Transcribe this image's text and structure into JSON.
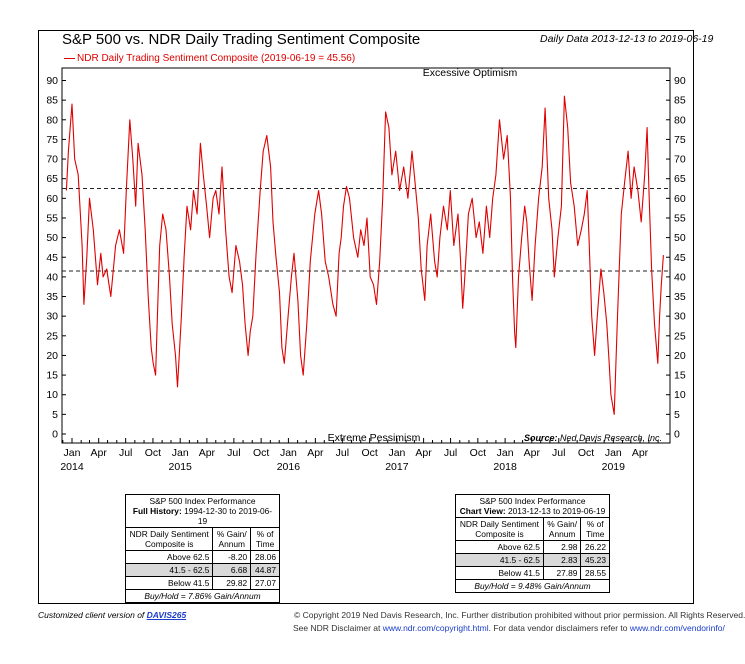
{
  "header": {
    "title": "S&P 500 vs. NDR Daily Trading Sentiment Composite",
    "date_range": "Daily Data 2013-12-13 to 2019-06-19"
  },
  "chart_data": {
    "type": "line",
    "title": "S&P 500 vs. NDR Daily Trading Sentiment Composite",
    "legend": "NDR Daily Trading Sentiment Composite (2019-06-19 = 45.56)",
    "legend_color": "#e00000",
    "legend_placement": "top-left",
    "ylim": [
      0,
      90
    ],
    "y_ticks": [
      0,
      5,
      10,
      15,
      20,
      25,
      30,
      35,
      40,
      45,
      50,
      55,
      60,
      65,
      70,
      75,
      80,
      85,
      90
    ],
    "x_range": [
      "2013-12-13",
      "2019-06-19"
    ],
    "x_month_labels": [
      "Jan",
      "Apr",
      "Jul",
      "Oct",
      "Jan",
      "Apr",
      "Jul",
      "Oct",
      "Jan",
      "Apr",
      "Jul",
      "Oct",
      "Jan",
      "Apr",
      "Jul",
      "Oct",
      "Jan",
      "Apr",
      "Jul",
      "Oct",
      "Jan",
      "Apr"
    ],
    "x_year_labels": [
      "2014",
      "2015",
      "2016",
      "2017",
      "2018",
      "2019"
    ],
    "reference_lines": [
      62.5,
      41.5
    ],
    "annotations": {
      "top": "Excessive Optimism",
      "bottom": "Extreme Pessimism"
    },
    "source": "Ned Davis Research, Inc.",
    "source_label": "Source:",
    "series": [
      {
        "x": [
          "2013-12-13",
          "2013-12-20",
          "2014-01-01",
          "2014-01-10",
          "2014-01-22",
          "2014-02-04",
          "2014-02-10",
          "2014-02-20",
          "2014-03-01",
          "2014-03-14",
          "2014-03-28",
          "2014-04-08",
          "2014-04-16",
          "2014-04-28",
          "2014-05-12",
          "2014-05-28",
          "2014-06-10",
          "2014-06-24",
          "2014-07-03",
          "2014-07-15",
          "2014-07-25",
          "2014-08-04",
          "2014-08-12",
          "2014-08-25",
          "2014-09-05",
          "2014-09-15",
          "2014-09-25",
          "2014-10-02",
          "2014-10-10",
          "2014-10-16",
          "2014-10-24",
          "2014-11-03",
          "2014-11-14",
          "2014-11-26",
          "2014-12-05",
          "2014-12-16",
          "2014-12-23",
          "2015-01-05",
          "2015-01-14",
          "2015-01-24",
          "2015-02-05",
          "2015-02-15",
          "2015-02-27",
          "2015-03-10",
          "2015-03-20",
          "2015-03-31",
          "2015-04-10",
          "2015-04-22",
          "2015-05-01",
          "2015-05-12",
          "2015-05-22",
          "2015-06-03",
          "2015-06-15",
          "2015-06-25",
          "2015-07-08",
          "2015-07-20",
          "2015-07-30",
          "2015-08-08",
          "2015-08-18",
          "2015-08-25",
          "2015-09-03",
          "2015-09-14",
          "2015-09-28",
          "2015-10-08",
          "2015-10-20",
          "2015-11-02",
          "2015-11-10",
          "2015-11-20",
          "2015-12-02",
          "2015-12-10",
          "2015-12-18",
          "2015-12-31",
          "2016-01-11",
          "2016-01-20",
          "2016-02-02",
          "2016-02-11",
          "2016-02-20",
          "2016-03-03",
          "2016-03-15",
          "2016-03-30",
          "2016-04-12",
          "2016-04-22",
          "2016-05-04",
          "2016-05-16",
          "2016-05-30",
          "2016-06-10",
          "2016-06-20",
          "2016-06-27",
          "2016-07-05",
          "2016-07-15",
          "2016-07-25",
          "2016-08-08",
          "2016-08-22",
          "2016-09-01",
          "2016-09-12",
          "2016-09-22",
          "2016-10-03",
          "2016-10-14",
          "2016-10-24",
          "2016-11-04",
          "2016-11-14",
          "2016-11-24",
          "2016-12-05",
          "2016-12-15",
          "2016-12-28",
          "2017-01-10",
          "2017-01-24",
          "2017-02-07",
          "2017-02-21",
          "2017-03-02",
          "2017-03-14",
          "2017-03-24",
          "2017-04-05",
          "2017-04-13",
          "2017-04-25",
          "2017-05-08",
          "2017-05-17",
          "2017-05-26",
          "2017-06-07",
          "2017-06-20",
          "2017-06-30",
          "2017-07-12",
          "2017-07-26",
          "2017-08-04",
          "2017-08-11",
          "2017-08-18",
          "2017-08-30",
          "2017-09-12",
          "2017-09-25",
          "2017-10-06",
          "2017-10-18",
          "2017-10-30",
          "2017-11-10",
          "2017-11-20",
          "2017-12-01",
          "2017-12-13",
          "2017-12-27",
          "2018-01-08",
          "2018-01-19",
          "2018-01-26",
          "2018-02-02",
          "2018-02-06",
          "2018-02-15",
          "2018-02-26",
          "2018-03-08",
          "2018-03-15",
          "2018-03-23",
          "2018-04-02",
          "2018-04-12",
          "2018-04-24",
          "2018-05-06",
          "2018-05-16",
          "2018-05-28",
          "2018-06-08",
          "2018-06-16",
          "2018-06-28",
          "2018-07-10",
          "2018-07-20",
          "2018-07-31",
          "2018-08-10",
          "2018-08-22",
          "2018-09-03",
          "2018-09-15",
          "2018-09-25",
          "2018-10-05",
          "2018-10-11",
          "2018-10-20",
          "2018-10-30",
          "2018-11-08",
          "2018-11-20",
          "2018-11-30",
          "2018-12-10",
          "2018-12-18",
          "2018-12-24",
          "2019-01-04",
          "2019-01-15",
          "2019-01-28",
          "2019-02-08",
          "2019-02-20",
          "2019-03-02",
          "2019-03-12",
          "2019-03-25",
          "2019-04-05",
          "2019-04-17",
          "2019-04-25",
          "2019-05-02",
          "2019-05-10",
          "2019-05-20",
          "2019-05-31",
          "2019-06-06",
          "2019-06-12",
          "2019-06-19"
        ],
        "values": [
          62,
          72,
          84,
          70,
          66,
          48,
          33,
          45,
          60,
          52,
          38,
          46,
          40,
          42,
          35,
          48,
          52,
          46,
          62,
          80,
          70,
          58,
          74,
          66,
          52,
          35,
          22,
          18,
          15,
          30,
          48,
          56,
          52,
          40,
          28,
          20,
          12,
          30,
          45,
          58,
          52,
          62,
          56,
          74,
          66,
          58,
          50,
          60,
          62,
          56,
          68,
          52,
          40,
          36,
          48,
          44,
          38,
          28,
          20,
          26,
          30,
          46,
          62,
          72,
          76,
          68,
          54,
          45,
          36,
          22,
          18,
          30,
          40,
          46,
          34,
          20,
          15,
          28,
          44,
          56,
          62,
          56,
          44,
          40,
          33,
          30,
          46,
          50,
          58,
          63,
          60,
          50,
          45,
          52,
          48,
          55,
          40,
          38,
          33,
          44,
          60,
          82,
          78,
          66,
          72,
          62,
          68,
          60,
          72,
          65,
          55,
          42,
          34,
          48,
          56,
          44,
          40,
          50,
          58,
          52,
          62,
          48,
          56,
          44,
          32,
          40,
          56,
          60,
          50,
          54,
          46,
          58,
          50,
          60,
          66,
          80,
          70,
          76,
          60,
          40,
          26,
          22,
          40,
          50,
          58,
          54,
          44,
          34,
          48,
          60,
          68,
          83,
          60,
          52,
          40,
          50,
          58,
          86,
          78,
          64,
          58,
          48,
          52,
          56,
          62,
          50,
          30,
          20,
          30,
          42,
          36,
          28,
          18,
          10,
          5,
          30,
          56,
          64,
          72,
          60,
          68,
          62,
          54,
          66,
          78,
          60,
          42,
          28,
          18,
          30,
          38,
          45.56
        ]
      }
    ]
  },
  "tables": {
    "full": {
      "title": "S&P 500 Index Performance",
      "period_label": "Full History:",
      "period": "1994-12-30 to 2019-06-19",
      "col1a": "NDR Daily Sentiment",
      "col1b": "Composite is",
      "col2a": "% Gain/",
      "col2b": "Annum",
      "col3a": "% of",
      "col3b": "Time",
      "rows": [
        {
          "label": "Above 62.5",
          "gain": "-8.20",
          "time": "28.06"
        },
        {
          "label": "41.5 - 62.5",
          "gain": "6.68",
          "time": "44.87"
        },
        {
          "label": "Below 41.5",
          "gain": "29.82",
          "time": "27.07"
        }
      ],
      "buy_hold": "Buy/Hold = 7.86% Gain/Annum"
    },
    "view": {
      "title": "S&P 500 Index Performance",
      "period_label": "Chart View:",
      "period": "2013-12-13 to 2019-06-19",
      "col1a": "NDR Daily Sentiment",
      "col1b": "Composite is",
      "col2a": "% Gain/",
      "col2b": "Annum",
      "col3a": "% of",
      "col3b": "Time",
      "rows": [
        {
          "label": "Above 62.5",
          "gain": "2.98",
          "time": "26.22"
        },
        {
          "label": "41.5 - 62.5",
          "gain": "2.83",
          "time": "45.23"
        },
        {
          "label": "Below 41.5",
          "gain": "27.89",
          "time": "28.55"
        }
      ],
      "buy_hold": "Buy/Hold = 9.48% Gain/Annum"
    }
  },
  "footer": {
    "client_prefix": "Customized client version of",
    "client_link": "DAVIS265",
    "copyright": "© Copyright 2019 Ned Davis Research, Inc. Further distribution prohibited without prior permission. All Rights Reserved.",
    "disclaimer_prefix": "See NDR Disclaimer at",
    "disclaimer_link": "www.ndr.com/copyright.html",
    "vendor_text": ". For data vendor disclaimers refer to",
    "vendor_link": "www.ndr.com/vendorinfo/"
  }
}
